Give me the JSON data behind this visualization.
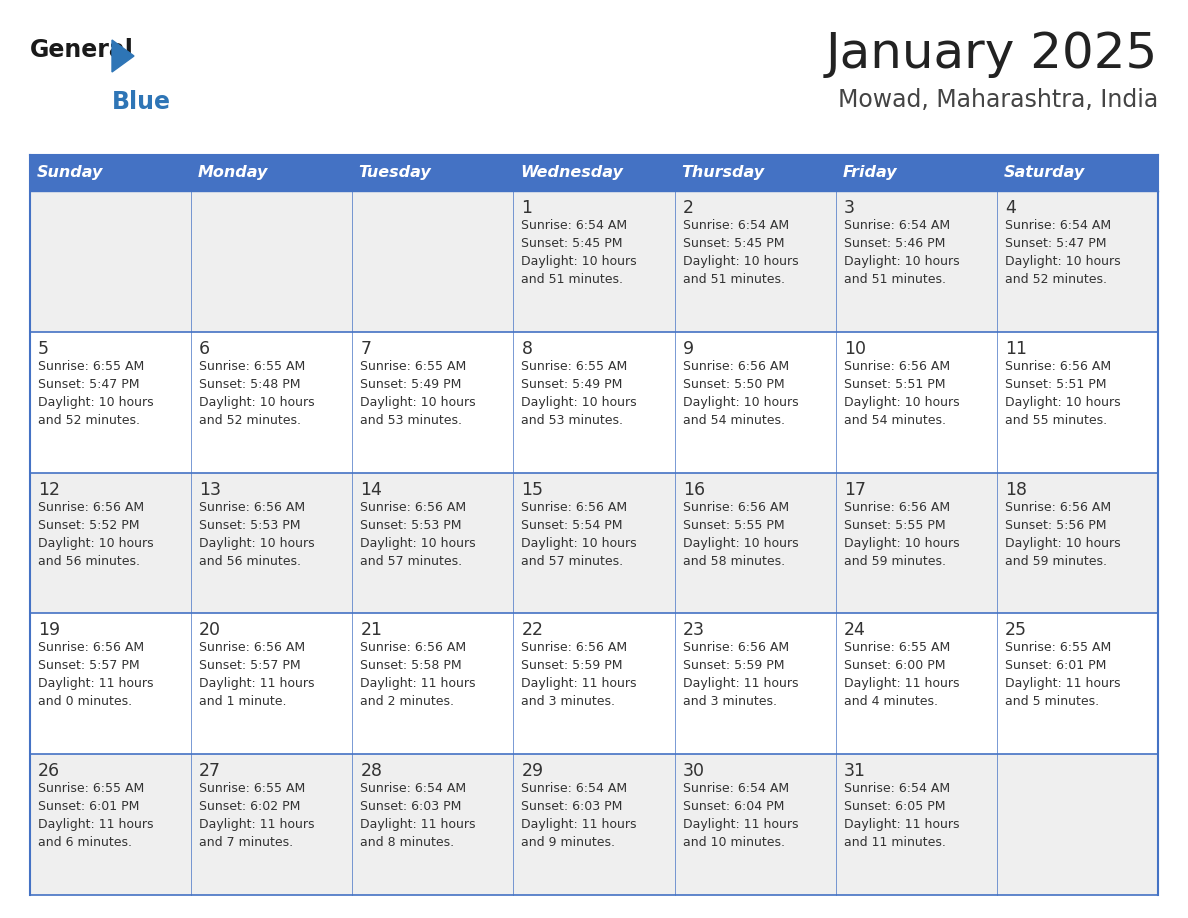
{
  "title": "January 2025",
  "subtitle": "Mowad, Maharashtra, India",
  "days_of_week": [
    "Sunday",
    "Monday",
    "Tuesday",
    "Wednesday",
    "Thursday",
    "Friday",
    "Saturday"
  ],
  "header_bg": "#4472C4",
  "header_text_color": "#FFFFFF",
  "cell_bg_light": "#EFEFEF",
  "cell_bg_white": "#FFFFFF",
  "cell_text_color": "#333333",
  "grid_line_color": "#4472C4",
  "row_line_color": "#4472C4",
  "title_color": "#222222",
  "subtitle_color": "#444444",
  "logo_general_color": "#1a1a1a",
  "logo_blue_color": "#2E75B6",
  "weeks": [
    [
      {
        "day": null,
        "sunrise": null,
        "sunset": null,
        "daylight_h": null,
        "daylight_m": null
      },
      {
        "day": null,
        "sunrise": null,
        "sunset": null,
        "daylight_h": null,
        "daylight_m": null
      },
      {
        "day": null,
        "sunrise": null,
        "sunset": null,
        "daylight_h": null,
        "daylight_m": null
      },
      {
        "day": 1,
        "sunrise": "6:54 AM",
        "sunset": "5:45 PM",
        "daylight_h": "10 hours",
        "daylight_m": "and 51 minutes."
      },
      {
        "day": 2,
        "sunrise": "6:54 AM",
        "sunset": "5:45 PM",
        "daylight_h": "10 hours",
        "daylight_m": "and 51 minutes."
      },
      {
        "day": 3,
        "sunrise": "6:54 AM",
        "sunset": "5:46 PM",
        "daylight_h": "10 hours",
        "daylight_m": "and 51 minutes."
      },
      {
        "day": 4,
        "sunrise": "6:54 AM",
        "sunset": "5:47 PM",
        "daylight_h": "10 hours",
        "daylight_m": "and 52 minutes."
      }
    ],
    [
      {
        "day": 5,
        "sunrise": "6:55 AM",
        "sunset": "5:47 PM",
        "daylight_h": "10 hours",
        "daylight_m": "and 52 minutes."
      },
      {
        "day": 6,
        "sunrise": "6:55 AM",
        "sunset": "5:48 PM",
        "daylight_h": "10 hours",
        "daylight_m": "and 52 minutes."
      },
      {
        "day": 7,
        "sunrise": "6:55 AM",
        "sunset": "5:49 PM",
        "daylight_h": "10 hours",
        "daylight_m": "and 53 minutes."
      },
      {
        "day": 8,
        "sunrise": "6:55 AM",
        "sunset": "5:49 PM",
        "daylight_h": "10 hours",
        "daylight_m": "and 53 minutes."
      },
      {
        "day": 9,
        "sunrise": "6:56 AM",
        "sunset": "5:50 PM",
        "daylight_h": "10 hours",
        "daylight_m": "and 54 minutes."
      },
      {
        "day": 10,
        "sunrise": "6:56 AM",
        "sunset": "5:51 PM",
        "daylight_h": "10 hours",
        "daylight_m": "and 54 minutes."
      },
      {
        "day": 11,
        "sunrise": "6:56 AM",
        "sunset": "5:51 PM",
        "daylight_h": "10 hours",
        "daylight_m": "and 55 minutes."
      }
    ],
    [
      {
        "day": 12,
        "sunrise": "6:56 AM",
        "sunset": "5:52 PM",
        "daylight_h": "10 hours",
        "daylight_m": "and 56 minutes."
      },
      {
        "day": 13,
        "sunrise": "6:56 AM",
        "sunset": "5:53 PM",
        "daylight_h": "10 hours",
        "daylight_m": "and 56 minutes."
      },
      {
        "day": 14,
        "sunrise": "6:56 AM",
        "sunset": "5:53 PM",
        "daylight_h": "10 hours",
        "daylight_m": "and 57 minutes."
      },
      {
        "day": 15,
        "sunrise": "6:56 AM",
        "sunset": "5:54 PM",
        "daylight_h": "10 hours",
        "daylight_m": "and 57 minutes."
      },
      {
        "day": 16,
        "sunrise": "6:56 AM",
        "sunset": "5:55 PM",
        "daylight_h": "10 hours",
        "daylight_m": "and 58 minutes."
      },
      {
        "day": 17,
        "sunrise": "6:56 AM",
        "sunset": "5:55 PM",
        "daylight_h": "10 hours",
        "daylight_m": "and 59 minutes."
      },
      {
        "day": 18,
        "sunrise": "6:56 AM",
        "sunset": "5:56 PM",
        "daylight_h": "10 hours",
        "daylight_m": "and 59 minutes."
      }
    ],
    [
      {
        "day": 19,
        "sunrise": "6:56 AM",
        "sunset": "5:57 PM",
        "daylight_h": "11 hours",
        "daylight_m": "and 0 minutes."
      },
      {
        "day": 20,
        "sunrise": "6:56 AM",
        "sunset": "5:57 PM",
        "daylight_h": "11 hours",
        "daylight_m": "and 1 minute."
      },
      {
        "day": 21,
        "sunrise": "6:56 AM",
        "sunset": "5:58 PM",
        "daylight_h": "11 hours",
        "daylight_m": "and 2 minutes."
      },
      {
        "day": 22,
        "sunrise": "6:56 AM",
        "sunset": "5:59 PM",
        "daylight_h": "11 hours",
        "daylight_m": "and 3 minutes."
      },
      {
        "day": 23,
        "sunrise": "6:56 AM",
        "sunset": "5:59 PM",
        "daylight_h": "11 hours",
        "daylight_m": "and 3 minutes."
      },
      {
        "day": 24,
        "sunrise": "6:55 AM",
        "sunset": "6:00 PM",
        "daylight_h": "11 hours",
        "daylight_m": "and 4 minutes."
      },
      {
        "day": 25,
        "sunrise": "6:55 AM",
        "sunset": "6:01 PM",
        "daylight_h": "11 hours",
        "daylight_m": "and 5 minutes."
      }
    ],
    [
      {
        "day": 26,
        "sunrise": "6:55 AM",
        "sunset": "6:01 PM",
        "daylight_h": "11 hours",
        "daylight_m": "and 6 minutes."
      },
      {
        "day": 27,
        "sunrise": "6:55 AM",
        "sunset": "6:02 PM",
        "daylight_h": "11 hours",
        "daylight_m": "and 7 minutes."
      },
      {
        "day": 28,
        "sunrise": "6:54 AM",
        "sunset": "6:03 PM",
        "daylight_h": "11 hours",
        "daylight_m": "and 8 minutes."
      },
      {
        "day": 29,
        "sunrise": "6:54 AM",
        "sunset": "6:03 PM",
        "daylight_h": "11 hours",
        "daylight_m": "and 9 minutes."
      },
      {
        "day": 30,
        "sunrise": "6:54 AM",
        "sunset": "6:04 PM",
        "daylight_h": "11 hours",
        "daylight_m": "and 10 minutes."
      },
      {
        "day": 31,
        "sunrise": "6:54 AM",
        "sunset": "6:05 PM",
        "daylight_h": "11 hours",
        "daylight_m": "and 11 minutes."
      },
      {
        "day": null,
        "sunrise": null,
        "sunset": null,
        "daylight_h": null,
        "daylight_m": null
      }
    ]
  ]
}
